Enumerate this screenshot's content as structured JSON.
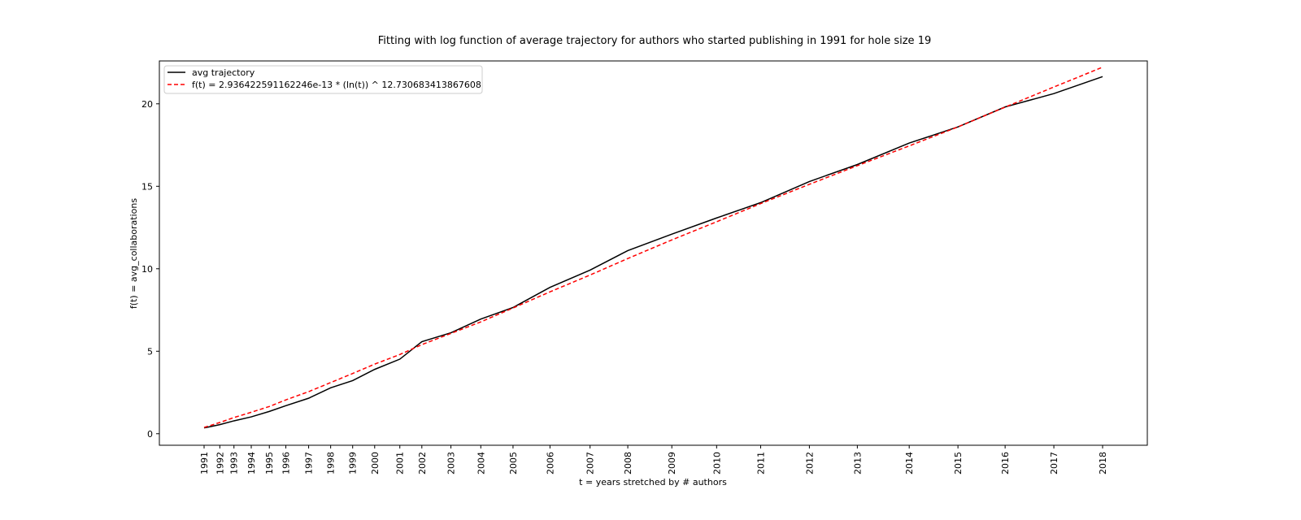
{
  "chart_data": {
    "type": "line",
    "title": "Fitting with log function of average trajectory for authors who started publishing in 1991 for hole size 19",
    "xlabel": "t = years stretched by # authors",
    "ylabel": "f(t) = avg_collaborations",
    "ylim": [
      -0.7,
      22.6
    ],
    "y_ticks": [
      0,
      5,
      10,
      15,
      20
    ],
    "x_tick_labels": [
      "1991",
      "1992",
      "1993",
      "1994",
      "1995",
      "1996",
      "1997",
      "1998",
      "1999",
      "2000",
      "2001",
      "2002",
      "2003",
      "2004",
      "2005",
      "2006",
      "2007",
      "2008",
      "2009",
      "2010",
      "2011",
      "2012",
      "2013",
      "2014",
      "2015",
      "2016",
      "2017",
      "2018"
    ],
    "x_stretched": [
      0,
      20,
      38,
      60,
      83,
      104,
      133,
      161,
      189,
      217,
      249,
      277,
      314,
      352,
      393,
      440,
      491,
      539,
      595,
      652,
      708,
      770,
      831,
      897,
      959,
      1019,
      1081,
      1143
    ],
    "grid": false,
    "legend_position": "top-left",
    "series": [
      {
        "name": "avg trajectory",
        "color": "#000000",
        "style": "solid",
        "values": [
          0.35,
          0.55,
          0.78,
          1.02,
          1.35,
          1.7,
          2.15,
          2.78,
          3.22,
          3.9,
          4.52,
          5.58,
          6.12,
          6.95,
          7.65,
          8.87,
          9.92,
          11.1,
          12.1,
          13.08,
          14.01,
          15.29,
          16.32,
          17.62,
          18.6,
          19.81,
          20.62,
          21.65
        ]
      },
      {
        "name": "f(t) = 2.936422591162246e-13 * (ln(t)) ^ 12.730683413867608",
        "color": "#ff0000",
        "style": "dashed",
        "values": [
          0.38,
          0.68,
          0.98,
          1.3,
          1.65,
          2.05,
          2.55,
          3.1,
          3.65,
          4.22,
          4.8,
          5.4,
          6.08,
          6.78,
          7.62,
          8.6,
          9.62,
          10.62,
          11.75,
          12.85,
          13.95,
          15.12,
          16.25,
          17.45,
          18.6,
          19.8,
          21.02,
          22.22
        ]
      }
    ]
  }
}
